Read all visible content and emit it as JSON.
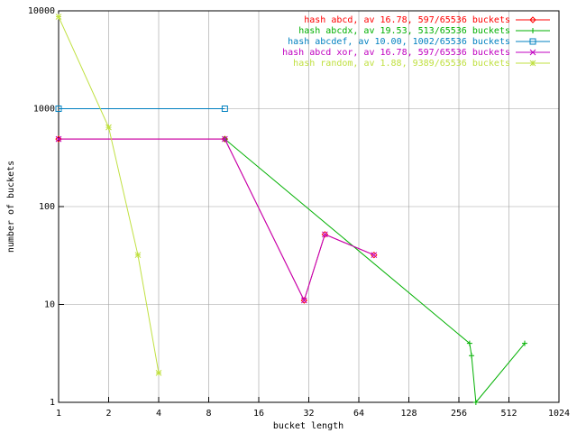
{
  "chart_data": {
    "type": "line",
    "x_label": "bucket length",
    "y_label": "number of buckets",
    "log_x": true,
    "log_y": true,
    "grid": true,
    "legend": "top-right",
    "xlim": [
      1,
      1024
    ],
    "ylim": [
      1,
      10000
    ],
    "xticks": [
      1,
      2,
      4,
      8,
      16,
      32,
      64,
      128,
      256,
      512,
      1024
    ],
    "yticks": [
      1,
      10,
      100,
      1000,
      10000
    ],
    "series": [
      {
        "name": "hash abcd, av 16.78, 597/65536 buckets",
        "color": "#ff0000",
        "marker": "diamond",
        "x": [
          1,
          10,
          30,
          40,
          79
        ],
        "values": [
          490,
          490,
          11,
          52,
          32
        ]
      },
      {
        "name": "hash abcdx, av 19.53, 513/65536 buckets",
        "color": "#00b000",
        "marker": "plus",
        "x": [
          10,
          297,
          305,
          324,
          637
        ],
        "values": [
          490,
          4,
          3,
          1,
          4
        ]
      },
      {
        "name": "hash abcdef, av 10.00, 1002/65536 buckets",
        "color": "#0080c0",
        "marker": "square",
        "x": [
          1,
          10
        ],
        "values": [
          1000,
          1000
        ]
      },
      {
        "name": "hash abcd xor, av 16.78, 597/65536 buckets",
        "color": "#c000c0",
        "marker": "cross",
        "x": [
          1,
          10,
          30,
          40,
          79
        ],
        "values": [
          490,
          490,
          11,
          52,
          32
        ]
      },
      {
        "name": "hash random, av 1.88, 9389/65536 buckets",
        "color": "#c0e040",
        "marker": "star",
        "x": [
          1,
          2,
          3,
          4
        ],
        "values": [
          8700,
          646,
          32,
          2
        ]
      }
    ]
  }
}
